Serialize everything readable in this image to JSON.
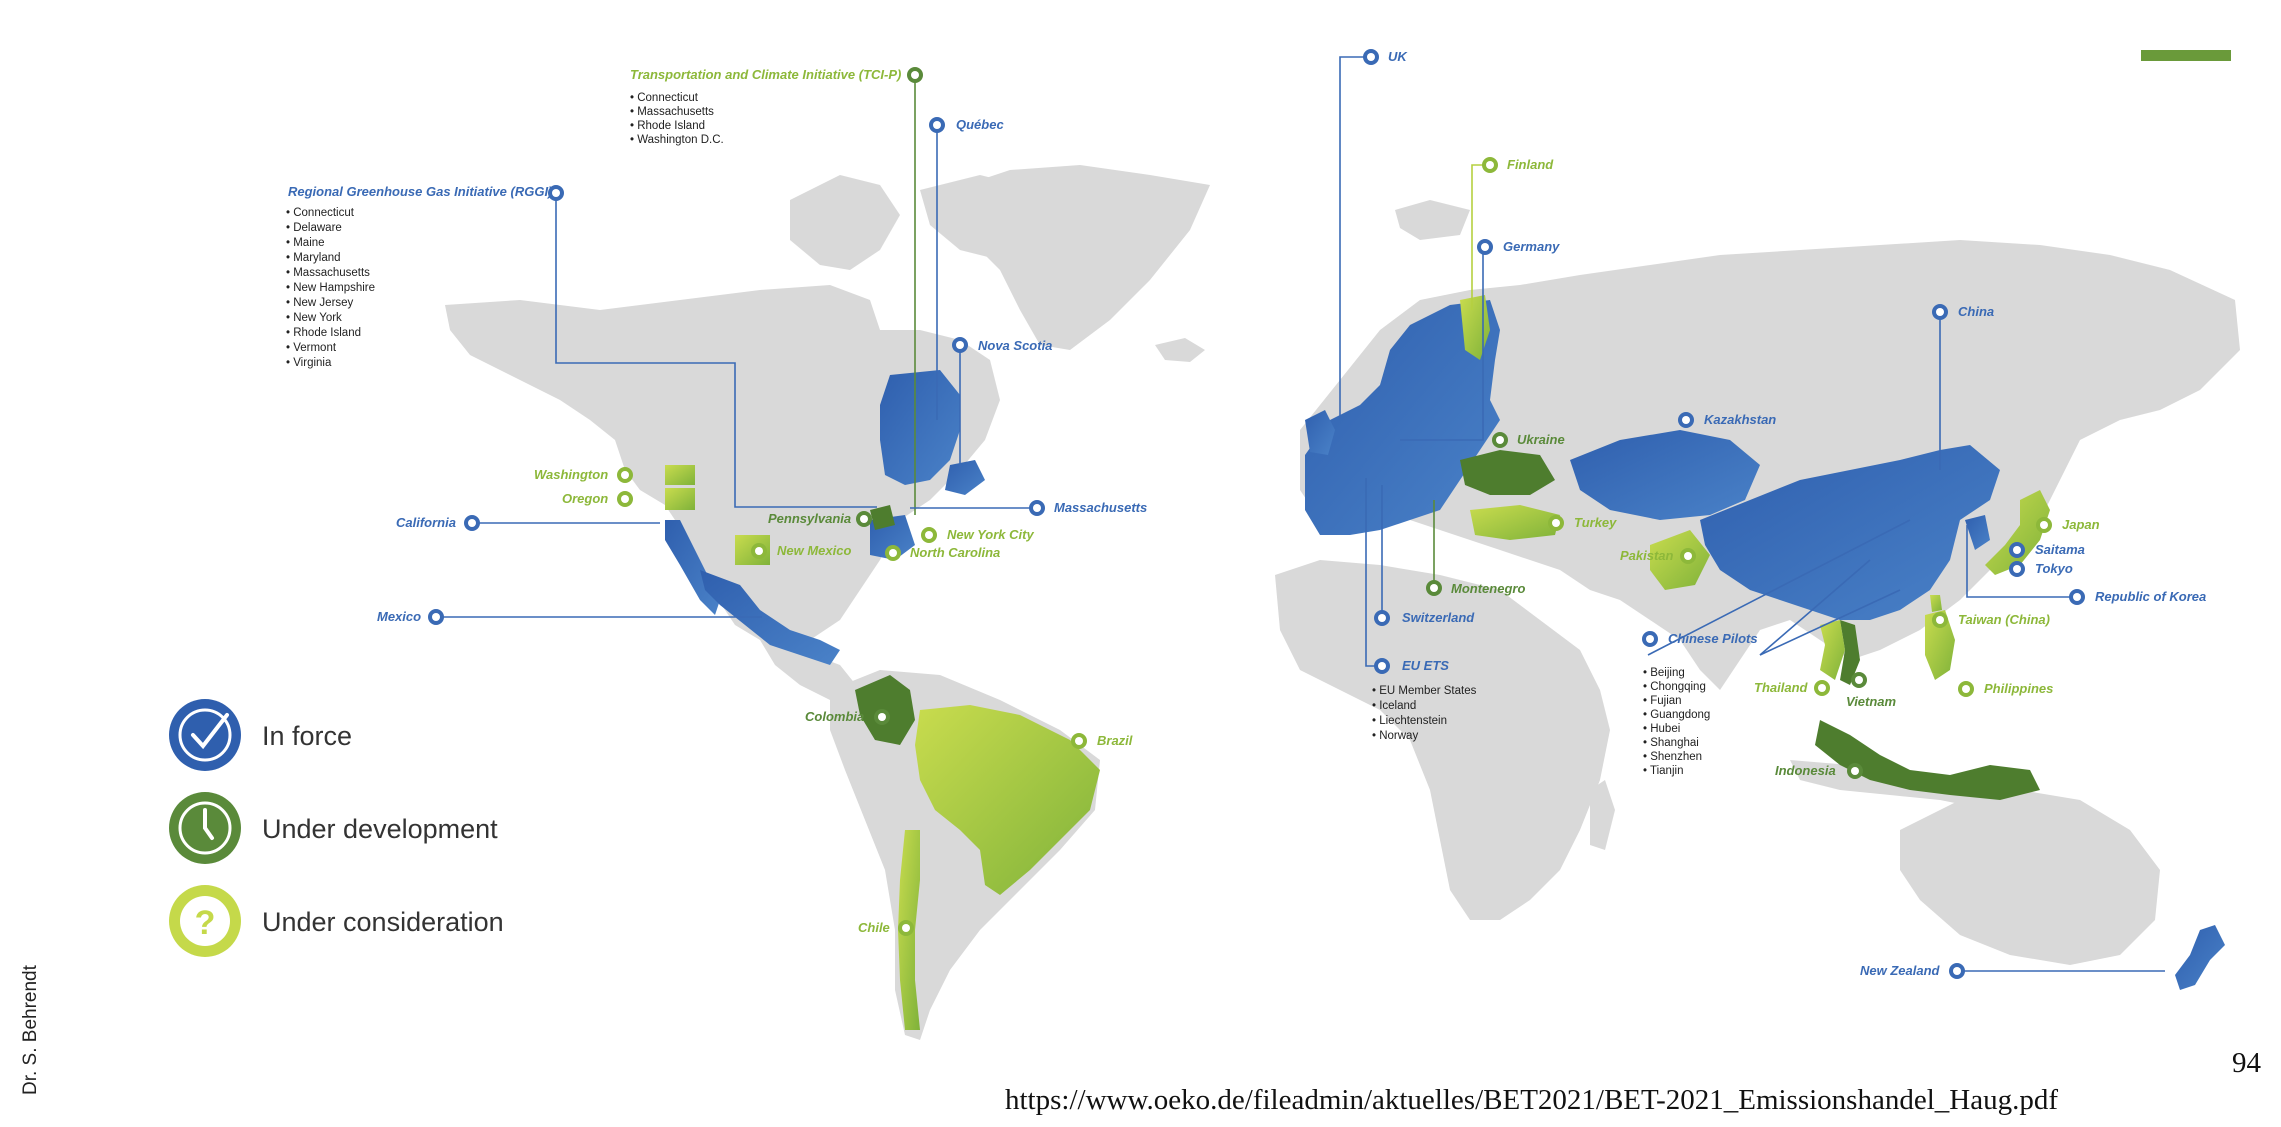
{
  "legend": {
    "in_force": "In force",
    "under_development": "Under development",
    "under_consideration": "Under consideration"
  },
  "colors": {
    "in_force": "#3a6ab5",
    "under_development": "#5a8a3a",
    "under_consideration": "#b5d040",
    "land": "#d9d9d9"
  },
  "labels": {
    "tcip": "Transportation and Climate Initiative (TCI-P)",
    "rggi": "Regional Greenhouse Gas Initiative (RGGI)",
    "quebec": "Québec",
    "nova_scotia": "Nova Scotia",
    "washington": "Washington",
    "oregon": "Oregon",
    "california": "California",
    "mexico": "Mexico",
    "pennsylvania": "Pennsylvania",
    "new_mexico": "New Mexico",
    "new_york_city": "New York City",
    "north_carolina": "North Carolina",
    "massachusetts": "Massachusetts",
    "colombia": "Colombia",
    "brazil": "Brazil",
    "chile": "Chile",
    "uk": "UK",
    "finland": "Finland",
    "germany": "Germany",
    "ukraine": "Ukraine",
    "turkey": "Turkey",
    "montenegro": "Montenegro",
    "switzerland": "Switzerland",
    "eu_ets": "EU ETS",
    "kazakhstan": "Kazakhstan",
    "china": "China",
    "pakistan": "Pakistan",
    "chinese_pilots": "Chinese Pilots",
    "japan": "Japan",
    "saitama": "Saitama",
    "tokyo": "Tokyo",
    "korea": "Republic of Korea",
    "taiwan": "Taiwan (China)",
    "thailand": "Thailand",
    "vietnam": "Vietnam",
    "philippines": "Philippines",
    "indonesia": "Indonesia",
    "new_zealand": "New Zealand"
  },
  "lists": {
    "tcip": [
      "• Connecticut",
      "• Massachusetts",
      "• Rhode Island",
      "• Washington D.C."
    ],
    "rggi": [
      "• Connecticut",
      "• Delaware",
      "• Maine",
      "• Maryland",
      "• Massachusetts",
      "• New Hampshire",
      "• New Jersey",
      "• New York",
      "• Rhode Island",
      "• Vermont",
      "• Virginia"
    ],
    "eu_ets": [
      "• EU Member States",
      "• Iceland",
      "• Liechtenstein",
      "• Norway"
    ],
    "chinese_pilots": [
      "• Beijing",
      "• Chongqing",
      "• Fujian",
      "• Guangdong",
      "• Hubei",
      "• Shanghai",
      "• Shenzhen",
      "• Tianjin"
    ]
  },
  "footer": {
    "author": "Dr. S. Behrendt",
    "page_number": "94",
    "source_url": "https://www.oeko.de/fileadmin/aktuelles/BET2021/BET-2021_Emissionshandel_Haug.pdf"
  },
  "icons": {
    "in_force": "check-clock-icon",
    "under_development": "clock-icon",
    "under_consideration": "question-icon"
  }
}
